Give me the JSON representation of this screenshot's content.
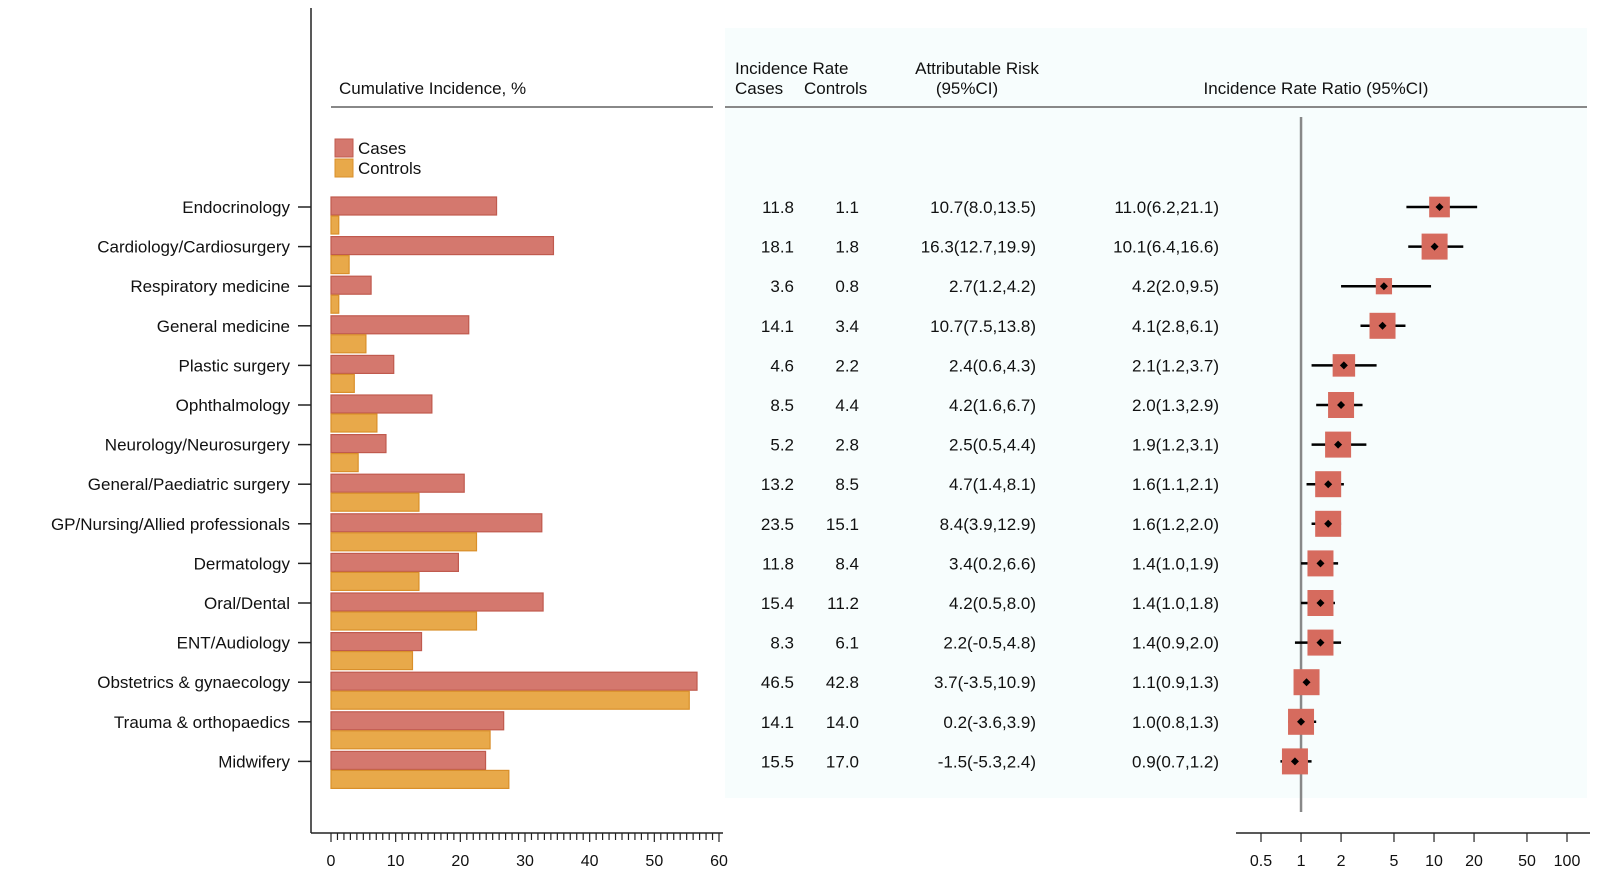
{
  "chart_data": {
    "type": "bar",
    "headers": {
      "cumulative": "Cumulative Incidence, %",
      "ir_title": "Incidence Rate",
      "ir_cases": "Cases",
      "ir_controls": "Controls",
      "ar_title": "Attributable Risk",
      "ar_ci": "(95%CI)",
      "irr_title": "Incidence Rate Ratio (95%CI)"
    },
    "legend": {
      "position": "top-left",
      "items": [
        {
          "name": "Cases",
          "color": "#d4786e"
        },
        {
          "name": "Controls",
          "color": "#e8a94a"
        }
      ]
    },
    "colors": {
      "cases_fill": "#d4786e",
      "cases_stroke": "#c05a4e",
      "controls_fill": "#e8a94a",
      "controls_stroke": "#d98f2a",
      "marker": "#d66b5e",
      "panel_bg": "#f7fdfd",
      "axis": "#222222",
      "refline": "#888888"
    },
    "bar_axis": {
      "min": 0,
      "max": 60,
      "ticks": [
        0,
        10,
        20,
        30,
        40,
        50,
        60
      ]
    },
    "irr_axis": {
      "scale": "log",
      "min": 0.5,
      "max": 100,
      "ticks": [
        "0.5",
        "1",
        "2",
        "5",
        "10",
        "20",
        "50",
        "100"
      ],
      "reference": 1
    },
    "rows": [
      {
        "category": "Endocrinology",
        "cases_ci": 25.6,
        "controls_ci": 1.2,
        "ir_cases": "11.8",
        "ir_controls": "1.1",
        "ar_text": "10.7(8.0,13.5)",
        "irr_text": "11.0(6.2,21.1)",
        "irr": 11.0,
        "lo": 6.2,
        "hi": 21.1
      },
      {
        "category": "Cardiology/Cardiosurgery",
        "cases_ci": 34.4,
        "controls_ci": 2.8,
        "ir_cases": "18.1",
        "ir_controls": "1.8",
        "ar_text": "16.3(12.7,19.9)",
        "irr_text": "10.1(6.4,16.6)",
        "irr": 10.1,
        "lo": 6.4,
        "hi": 16.6
      },
      {
        "category": "Respiratory medicine",
        "cases_ci": 6.2,
        "controls_ci": 1.2,
        "ir_cases": "3.6",
        "ir_controls": "0.8",
        "ar_text": "2.7(1.2,4.2)",
        "irr_text": "4.2(2.0,9.5)",
        "irr": 4.2,
        "lo": 2.0,
        "hi": 9.5
      },
      {
        "category": "General medicine",
        "cases_ci": 21.3,
        "controls_ci": 5.4,
        "ir_cases": "14.1",
        "ir_controls": "3.4",
        "ar_text": "10.7(7.5,13.8)",
        "irr_text": "4.1(2.8,6.1)",
        "irr": 4.1,
        "lo": 2.8,
        "hi": 6.1
      },
      {
        "category": "Plastic surgery",
        "cases_ci": 9.7,
        "controls_ci": 3.6,
        "ir_cases": "4.6",
        "ir_controls": "2.2",
        "ar_text": "2.4(0.6,4.3)",
        "irr_text": "2.1(1.2,3.7)",
        "irr": 2.1,
        "lo": 1.2,
        "hi": 3.7
      },
      {
        "category": "Ophthalmology",
        "cases_ci": 15.6,
        "controls_ci": 7.1,
        "ir_cases": "8.5",
        "ir_controls": "4.4",
        "ar_text": "4.2(1.6,6.7)",
        "irr_text": "2.0(1.3,2.9)",
        "irr": 2.0,
        "lo": 1.3,
        "hi": 2.9
      },
      {
        "category": "Neurology/Neurosurgery",
        "cases_ci": 8.5,
        "controls_ci": 4.2,
        "ir_cases": "5.2",
        "ir_controls": "2.8",
        "ar_text": "2.5(0.5,4.4)",
        "irr_text": "1.9(1.2,3.1)",
        "irr": 1.9,
        "lo": 1.2,
        "hi": 3.1
      },
      {
        "category": "General/Paediatric surgery",
        "cases_ci": 20.6,
        "controls_ci": 13.6,
        "ir_cases": "13.2",
        "ir_controls": "8.5",
        "ar_text": "4.7(1.4,8.1)",
        "irr_text": "1.6(1.1,2.1)",
        "irr": 1.6,
        "lo": 1.1,
        "hi": 2.1
      },
      {
        "category": "GP/Nursing/Allied professionals",
        "cases_ci": 32.6,
        "controls_ci": 22.5,
        "ir_cases": "23.5",
        "ir_controls": "15.1",
        "ar_text": "8.4(3.9,12.9)",
        "irr_text": "1.6(1.2,2.0)",
        "irr": 1.6,
        "lo": 1.2,
        "hi": 2.0
      },
      {
        "category": "Dermatology",
        "cases_ci": 19.7,
        "controls_ci": 13.6,
        "ir_cases": "11.8",
        "ir_controls": "8.4",
        "ar_text": "3.4(0.2,6.6)",
        "irr_text": "1.4(1.0,1.9)",
        "irr": 1.4,
        "lo": 1.0,
        "hi": 1.9
      },
      {
        "category": "Oral/Dental",
        "cases_ci": 32.8,
        "controls_ci": 22.5,
        "ir_cases": "15.4",
        "ir_controls": "11.2",
        "ar_text": "4.2(0.5,8.0)",
        "irr_text": "1.4(1.0,1.8)",
        "irr": 1.4,
        "lo": 1.0,
        "hi": 1.8
      },
      {
        "category": "ENT/Audiology",
        "cases_ci": 14.0,
        "controls_ci": 12.6,
        "ir_cases": "8.3",
        "ir_controls": "6.1",
        "ar_text": "2.2(-0.5,4.8)",
        "irr_text": "1.4(0.9,2.0)",
        "irr": 1.4,
        "lo": 0.9,
        "hi": 2.0
      },
      {
        "category": "Obstetrics & gynaecology",
        "cases_ci": 56.6,
        "controls_ci": 55.4,
        "ir_cases": "46.5",
        "ir_controls": "42.8",
        "ar_text": "3.7(-3.5,10.9)",
        "irr_text": "1.1(0.9,1.3)",
        "irr": 1.1,
        "lo": 0.9,
        "hi": 1.3
      },
      {
        "category": "Trauma & orthopaedics",
        "cases_ci": 26.7,
        "controls_ci": 24.6,
        "ir_cases": "14.1",
        "ir_controls": "14.0",
        "ar_text": "0.2(-3.6,3.9)",
        "irr_text": "1.0(0.8,1.3)",
        "irr": 1.0,
        "lo": 0.8,
        "hi": 1.3
      },
      {
        "category": "Midwifery",
        "cases_ci": 23.9,
        "controls_ci": 27.5,
        "ir_cases": "15.5",
        "ir_controls": "17.0",
        "ar_text": "-1.5(-5.3,2.4)",
        "irr_text": "0.9(0.7,1.2)",
        "irr": 0.9,
        "lo": 0.7,
        "hi": 1.2
      }
    ]
  }
}
